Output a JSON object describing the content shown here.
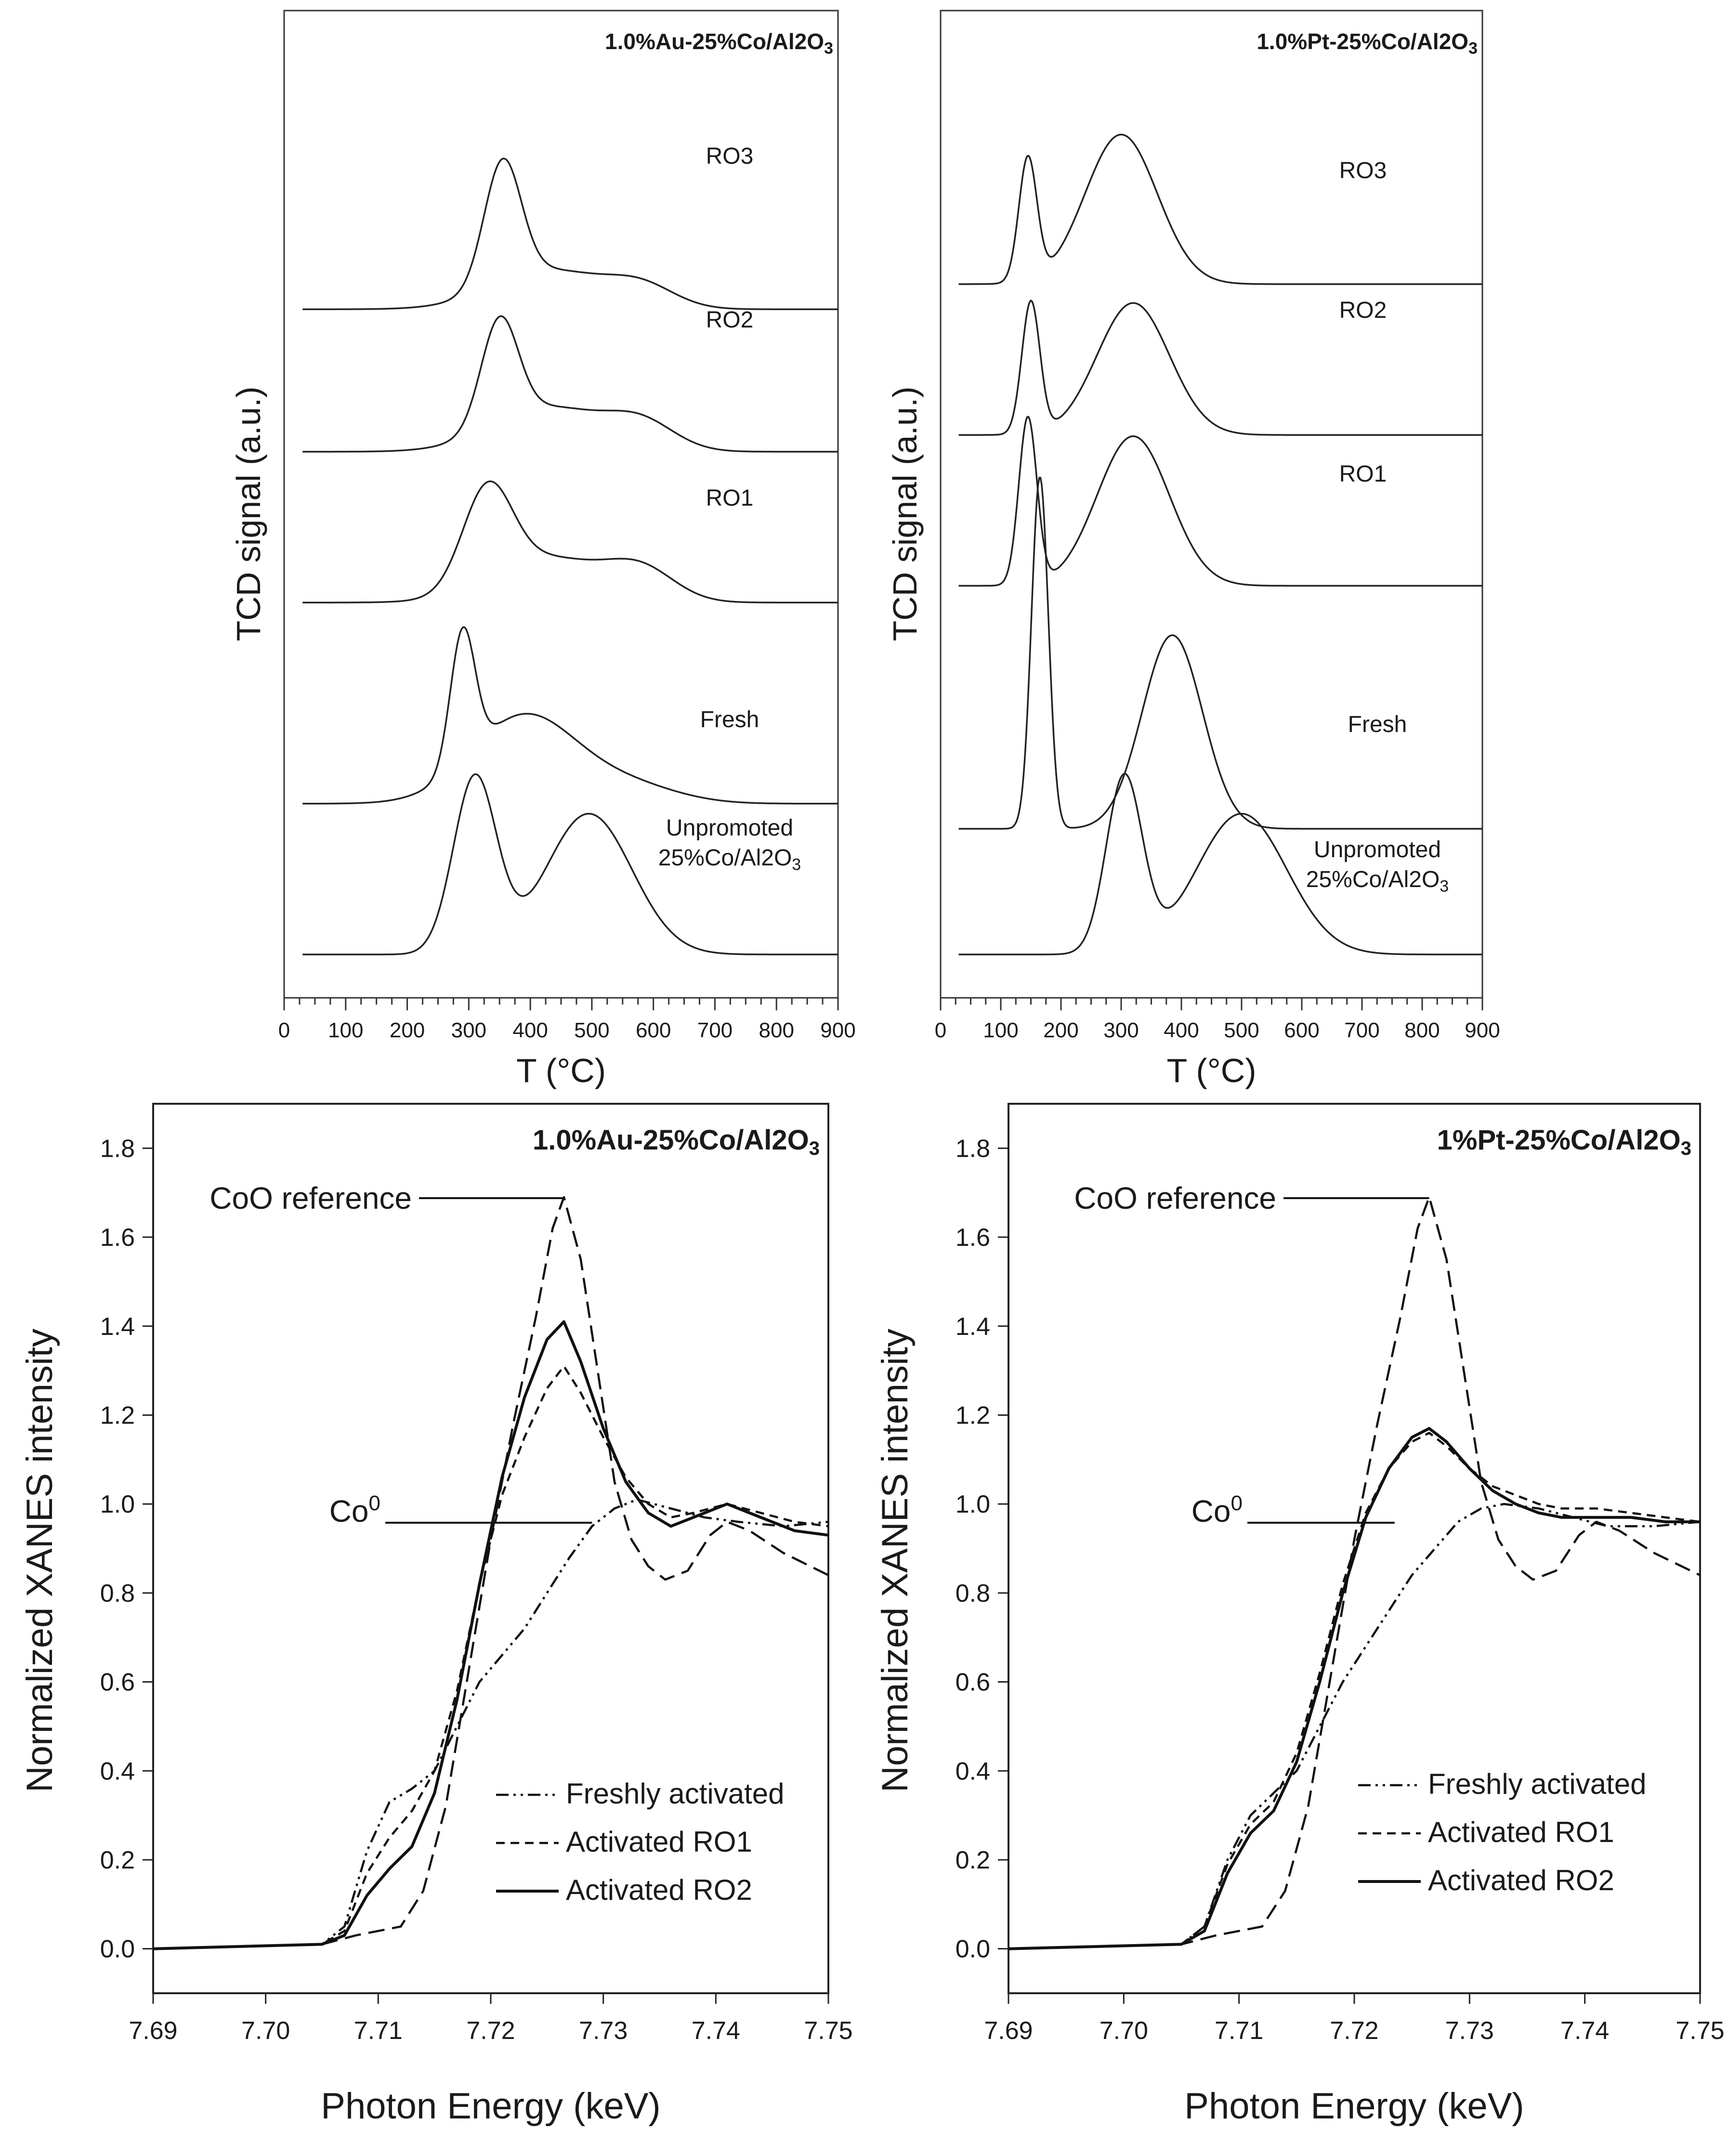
{
  "chart_data": [
    {
      "type": "line",
      "panel": "top-left",
      "title": "1.0%Au-25%Co/Al2O3",
      "xlabel": "T (°C)",
      "ylabel": "TCD signal (a.u.)",
      "xlim": [
        0,
        900
      ],
      "x_ticks": [
        "0",
        "100",
        "200",
        "300",
        "400",
        "500",
        "600",
        "700",
        "800",
        "900"
      ],
      "traces": [
        {
          "name": "RO3",
          "label": "RO3",
          "baseline": 0.77,
          "peaks": [
            {
              "c": 355,
              "w": 30,
              "h": 0.7
            },
            {
              "c": 430,
              "w": 90,
              "h": 0.22
            },
            {
              "c": 580,
              "w": 55,
              "h": 0.12
            }
          ]
        },
        {
          "name": "RO2",
          "label": "RO2",
          "baseline": 0.6,
          "peaks": [
            {
              "c": 350,
              "w": 30,
              "h": 0.6
            },
            {
              "c": 430,
              "w": 90,
              "h": 0.25
            },
            {
              "c": 580,
              "w": 55,
              "h": 0.15
            }
          ]
        },
        {
          "name": "RO1",
          "label": "RO1",
          "baseline": 0.42,
          "peaks": [
            {
              "c": 330,
              "w": 40,
              "h": 0.55
            },
            {
              "c": 430,
              "w": 90,
              "h": 0.25
            },
            {
              "c": 580,
              "w": 55,
              "h": 0.17
            }
          ]
        },
        {
          "name": "Fresh",
          "label": "Fresh",
          "baseline": 0.18,
          "peaks": [
            {
              "c": 290,
              "w": 20,
              "h": 0.75
            },
            {
              "c": 390,
              "w": 85,
              "h": 0.5
            },
            {
              "c": 560,
              "w": 80,
              "h": 0.1
            }
          ]
        },
        {
          "name": "Unpromoted",
          "label": "Unpromoted",
          "label2": "25%Co/Al2O3",
          "baseline": 0.0,
          "peaks": [
            {
              "c": 310,
              "w": 35,
              "h": 1.0
            },
            {
              "c": 495,
              "w": 70,
              "h": 0.8
            }
          ]
        }
      ]
    },
    {
      "type": "line",
      "panel": "top-right",
      "title": "1.0%Pt-25%Co/Al2O3",
      "xlabel": "T (°C)",
      "ylabel": "TCD signal (a.u.)",
      "xlim": [
        0,
        900
      ],
      "x_ticks": [
        "0",
        "100",
        "200",
        "300",
        "400",
        "500",
        "600",
        "700",
        "800",
        "900"
      ],
      "traces": [
        {
          "name": "RO3",
          "label": "RO3",
          "baseline": 0.8,
          "peaks": [
            {
              "c": 145,
              "w": 15,
              "h": 0.7
            },
            {
              "c": 300,
              "w": 60,
              "h": 0.85
            }
          ]
        },
        {
          "name": "RO2",
          "label": "RO2",
          "baseline": 0.62,
          "peaks": [
            {
              "c": 150,
              "w": 15,
              "h": 0.75
            },
            {
              "c": 320,
              "w": 60,
              "h": 0.75
            }
          ]
        },
        {
          "name": "RO1",
          "label": "RO1",
          "baseline": 0.44,
          "peaks": [
            {
              "c": 145,
              "w": 15,
              "h": 0.95
            },
            {
              "c": 320,
              "w": 60,
              "h": 0.85
            }
          ]
        },
        {
          "name": "Fresh",
          "label": "Fresh",
          "baseline": 0.15,
          "peaks": [
            {
              "c": 165,
              "w": 14,
              "h": 2.0
            },
            {
              "c": 385,
              "w": 50,
              "h": 1.1
            }
          ]
        },
        {
          "name": "Unpromoted",
          "label": "Unpromoted",
          "label2": "25%Co/Al2O3",
          "baseline": 0.0,
          "peaks": [
            {
              "c": 305,
              "w": 30,
              "h": 1.0
            },
            {
              "c": 500,
              "w": 75,
              "h": 0.8
            }
          ]
        }
      ]
    },
    {
      "type": "line",
      "panel": "bottom-left",
      "title": "1.0%Au-25%Co/Al2O3",
      "xlabel": "Photon Energy (keV)",
      "ylabel": "Normalized XANES intensity",
      "xlim": [
        7.69,
        7.75
      ],
      "ylim": [
        -0.1,
        1.9
      ],
      "x_ticks": [
        "7.69",
        "7.70",
        "7.71",
        "7.72",
        "7.73",
        "7.74",
        "7.75"
      ],
      "y_ticks": [
        "0.0",
        "0.2",
        "0.4",
        "0.6",
        "0.8",
        "1.0",
        "1.2",
        "1.4",
        "1.6",
        "1.8"
      ],
      "annotations": [
        {
          "text": "CoO reference",
          "x": 7.7265,
          "y": 1.7
        },
        {
          "text": "Co",
          "sup": "0",
          "x": 7.729,
          "y": 0.99
        }
      ],
      "series": [
        {
          "name": "CoO reference",
          "style": "long-dash",
          "x": [
            7.69,
            7.705,
            7.708,
            7.712,
            7.714,
            7.716,
            7.718,
            7.72,
            7.722,
            7.724,
            7.7255,
            7.7265,
            7.728,
            7.7295,
            7.731,
            7.7325,
            7.734,
            7.7355,
            7.7375,
            7.7395,
            7.741,
            7.743,
            7.746,
            7.75
          ],
          "y": [
            0.0,
            0.01,
            0.03,
            0.05,
            0.13,
            0.32,
            0.62,
            0.92,
            1.18,
            1.42,
            1.62,
            1.69,
            1.55,
            1.3,
            1.05,
            0.92,
            0.86,
            0.83,
            0.85,
            0.93,
            0.96,
            0.94,
            0.89,
            0.84
          ]
        },
        {
          "name": "Freshly activated",
          "style": "dash-dot-dot",
          "x": [
            7.69,
            7.705,
            7.707,
            7.709,
            7.711,
            7.713,
            7.715,
            7.717,
            7.719,
            7.721,
            7.723,
            7.725,
            7.727,
            7.729,
            7.731,
            7.733,
            7.736,
            7.739,
            7.742,
            7.746,
            7.75
          ],
          "y": [
            0.0,
            0.01,
            0.05,
            0.22,
            0.33,
            0.36,
            0.4,
            0.5,
            0.6,
            0.66,
            0.72,
            0.8,
            0.88,
            0.95,
            0.99,
            1.01,
            0.99,
            0.97,
            0.96,
            0.95,
            0.96
          ]
        },
        {
          "name": "Activated RO1",
          "style": "short-dash",
          "x": [
            7.69,
            7.705,
            7.707,
            7.709,
            7.711,
            7.713,
            7.715,
            7.717,
            7.719,
            7.721,
            7.723,
            7.725,
            7.7265,
            7.728,
            7.73,
            7.732,
            7.734,
            7.736,
            7.738,
            7.741,
            7.744,
            7.747,
            7.75
          ],
          "y": [
            0.0,
            0.01,
            0.04,
            0.17,
            0.25,
            0.31,
            0.4,
            0.58,
            0.82,
            1.02,
            1.15,
            1.26,
            1.31,
            1.25,
            1.15,
            1.06,
            1.0,
            0.97,
            0.98,
            1.0,
            0.98,
            0.96,
            0.95
          ]
        },
        {
          "name": "Activated RO2",
          "style": "solid",
          "x": [
            7.69,
            7.705,
            7.707,
            7.709,
            7.711,
            7.713,
            7.715,
            7.717,
            7.719,
            7.721,
            7.723,
            7.725,
            7.7265,
            7.728,
            7.73,
            7.732,
            7.734,
            7.736,
            7.738,
            7.741,
            7.744,
            7.747,
            7.75
          ],
          "y": [
            0.0,
            0.01,
            0.03,
            0.12,
            0.18,
            0.23,
            0.35,
            0.56,
            0.82,
            1.06,
            1.24,
            1.37,
            1.41,
            1.32,
            1.17,
            1.05,
            0.98,
            0.95,
            0.97,
            1.0,
            0.97,
            0.94,
            0.93
          ]
        }
      ],
      "legend": [
        "Freshly activated",
        "Activated RO1",
        "Activated RO2"
      ],
      "legend_position": "bottom-right"
    },
    {
      "type": "line",
      "panel": "bottom-right",
      "title": "1%Pt-25%Co/Al2O3",
      "xlabel": "Photon Energy (keV)",
      "ylabel": "Normalized XANES intensity",
      "xlim": [
        7.69,
        7.75
      ],
      "ylim": [
        -0.1,
        1.9
      ],
      "x_ticks": [
        "7.69",
        "7.70",
        "7.71",
        "7.72",
        "7.73",
        "7.74",
        "7.75"
      ],
      "y_ticks": [
        "0.0",
        "0.2",
        "0.4",
        "0.6",
        "0.8",
        "1.0",
        "1.2",
        "1.4",
        "1.6",
        "1.8"
      ],
      "annotations": [
        {
          "text": "CoO reference",
          "x": 7.7265,
          "y": 1.7
        },
        {
          "text": "Co",
          "sup": "0",
          "x": 7.7235,
          "y": 0.99
        }
      ],
      "series": [
        {
          "name": "CoO reference",
          "style": "long-dash",
          "x": [
            7.69,
            7.705,
            7.708,
            7.712,
            7.714,
            7.716,
            7.718,
            7.72,
            7.722,
            7.724,
            7.7255,
            7.7265,
            7.728,
            7.7295,
            7.731,
            7.7325,
            7.734,
            7.7355,
            7.7375,
            7.7395,
            7.741,
            7.743,
            7.746,
            7.75
          ],
          "y": [
            0.0,
            0.01,
            0.03,
            0.05,
            0.13,
            0.32,
            0.62,
            0.92,
            1.18,
            1.42,
            1.62,
            1.69,
            1.55,
            1.3,
            1.05,
            0.92,
            0.86,
            0.83,
            0.85,
            0.93,
            0.96,
            0.94,
            0.89,
            0.84
          ]
        },
        {
          "name": "Freshly activated",
          "style": "dash-dot-dot",
          "x": [
            7.69,
            7.705,
            7.707,
            7.709,
            7.711,
            7.713,
            7.715,
            7.717,
            7.719,
            7.721,
            7.723,
            7.725,
            7.727,
            7.729,
            7.731,
            7.733,
            7.736,
            7.739,
            7.742,
            7.746,
            7.75
          ],
          "y": [
            0.0,
            0.01,
            0.05,
            0.2,
            0.3,
            0.35,
            0.4,
            0.5,
            0.6,
            0.68,
            0.76,
            0.84,
            0.9,
            0.96,
            0.99,
            1.0,
            0.99,
            0.97,
            0.95,
            0.95,
            0.96
          ]
        },
        {
          "name": "Activated RO1",
          "style": "short-dash",
          "x": [
            7.69,
            7.705,
            7.707,
            7.709,
            7.711,
            7.713,
            7.715,
            7.717,
            7.719,
            7.721,
            7.723,
            7.725,
            7.7265,
            7.728,
            7.73,
            7.732,
            7.734,
            7.736,
            7.738,
            7.741,
            7.744,
            7.747,
            7.75
          ],
          "y": [
            0.0,
            0.01,
            0.05,
            0.19,
            0.28,
            0.33,
            0.44,
            0.62,
            0.82,
            0.98,
            1.08,
            1.14,
            1.16,
            1.13,
            1.08,
            1.04,
            1.02,
            1.0,
            0.99,
            0.99,
            0.98,
            0.97,
            0.96
          ]
        },
        {
          "name": "Activated RO2",
          "style": "solid",
          "x": [
            7.69,
            7.705,
            7.707,
            7.709,
            7.711,
            7.713,
            7.715,
            7.717,
            7.719,
            7.721,
            7.723,
            7.725,
            7.7265,
            7.728,
            7.73,
            7.732,
            7.734,
            7.736,
            7.738,
            7.741,
            7.744,
            7.747,
            7.75
          ],
          "y": [
            0.0,
            0.01,
            0.04,
            0.17,
            0.26,
            0.31,
            0.42,
            0.6,
            0.8,
            0.97,
            1.08,
            1.15,
            1.17,
            1.14,
            1.08,
            1.03,
            1.0,
            0.98,
            0.97,
            0.97,
            0.97,
            0.96,
            0.96
          ]
        }
      ],
      "legend": [
        "Freshly activated",
        "Activated RO1",
        "Activated RO2"
      ],
      "legend_position": "bottom-right"
    }
  ]
}
